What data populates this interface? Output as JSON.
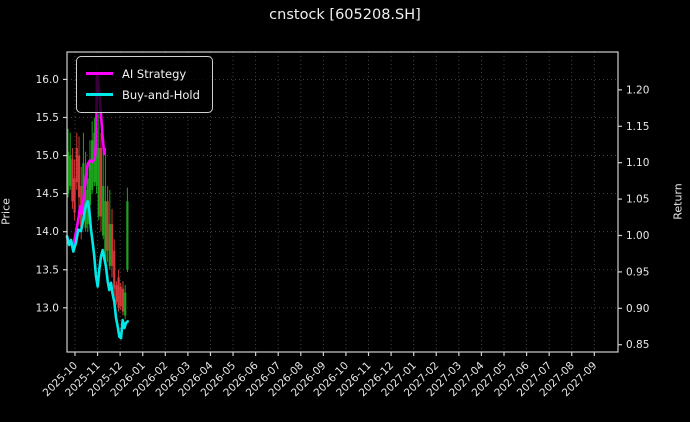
{
  "window": {
    "title": "cnstock [605208.SH]"
  },
  "chart_data": {
    "type": "candlestick+line",
    "title": "cnstock [605208.SH]",
    "grid": "dotted",
    "background": "#000000",
    "text_color": "#e8e8e8",
    "left_axis": {
      "label": "Price",
      "ticks": [
        "16.0",
        "15.5",
        "15.0",
        "14.5",
        "14.0",
        "13.5",
        "13.0"
      ],
      "ylim": [
        12.42,
        16.36
      ]
    },
    "right_axis": {
      "label": "Return",
      "ticks": [
        "1.20",
        "1.15",
        "1.10",
        "1.05",
        "1.00",
        "0.95",
        "0.90",
        "0.85"
      ],
      "ylim": [
        0.84,
        1.252
      ]
    },
    "x_axis": {
      "tick_labels": [
        "2025-10",
        "2025-11",
        "2025-12",
        "2026-01",
        "2026-02",
        "2026-03",
        "2026-04",
        "2026-05",
        "2026-06",
        "2026-07",
        "2026-08",
        "2026-09",
        "2026-10",
        "2026-11",
        "2026-12",
        "2027-01",
        "2027-02",
        "2027-03",
        "2027-04",
        "2027-05",
        "2027-06",
        "2027-07",
        "2027-08",
        "2027-09"
      ],
      "first_tick_frac": 0.0145,
      "tick_spacing_frac": 0.04098
    },
    "legend": {
      "position": "upper left",
      "entries": [
        {
          "label": "AI Strategy",
          "color": "#ff00ff"
        },
        {
          "label": "Buy-and-Hold",
          "color": "#00e8e8"
        }
      ]
    },
    "candle_colors": {
      "up": "#1fa41f",
      "down": "#d03a3a"
    },
    "candles": [
      {
        "x": 0.0018,
        "o": 14.5,
        "h": 15.35,
        "l": 14.45,
        "c": 15.05
      },
      {
        "x": 0.0058,
        "o": 14.6,
        "h": 15.3,
        "l": 14.55,
        "c": 15.0
      },
      {
        "x": 0.0098,
        "o": 14.95,
        "h": 15.1,
        "l": 14.3,
        "c": 14.4
      },
      {
        "x": 0.0138,
        "o": 14.7,
        "h": 14.95,
        "l": 14.15,
        "c": 14.25
      },
      {
        "x": 0.0178,
        "o": 15.1,
        "h": 15.3,
        "l": 14.55,
        "c": 14.65
      },
      {
        "x": 0.0218,
        "o": 15.0,
        "h": 15.25,
        "l": 14.3,
        "c": 14.45
      },
      {
        "x": 0.0258,
        "o": 14.6,
        "h": 14.85,
        "l": 13.9,
        "c": 14.05
      },
      {
        "x": 0.0298,
        "o": 14.25,
        "h": 15.3,
        "l": 14.2,
        "c": 14.9
      },
      {
        "x": 0.0338,
        "o": 14.05,
        "h": 15.05,
        "l": 14.0,
        "c": 14.55
      },
      {
        "x": 0.0377,
        "o": 14.1,
        "h": 14.9,
        "l": 14.0,
        "c": 14.7
      },
      {
        "x": 0.0417,
        "o": 14.35,
        "h": 15.2,
        "l": 14.3,
        "c": 14.95
      },
      {
        "x": 0.0457,
        "o": 14.55,
        "h": 15.45,
        "l": 14.5,
        "c": 15.2
      },
      {
        "x": 0.0497,
        "o": 14.65,
        "h": 15.5,
        "l": 14.6,
        "c": 15.3
      },
      {
        "x": 0.0537,
        "o": 14.6,
        "h": 15.55,
        "l": 14.5,
        "c": 15.35
      },
      {
        "x": 0.0577,
        "o": 14.2,
        "h": 15.55,
        "l": 14.15,
        "c": 15.1
      },
      {
        "x": 0.0617,
        "o": 15.1,
        "h": 15.3,
        "l": 14.0,
        "c": 14.2
      },
      {
        "x": 0.0657,
        "o": 13.95,
        "h": 15.05,
        "l": 13.9,
        "c": 14.6
      },
      {
        "x": 0.0697,
        "o": 13.6,
        "h": 15.1,
        "l": 13.5,
        "c": 14.4
      },
      {
        "x": 0.0737,
        "o": 14.4,
        "h": 14.6,
        "l": 13.6,
        "c": 13.75
      },
      {
        "x": 0.0777,
        "o": 13.55,
        "h": 14.55,
        "l": 13.5,
        "c": 14.1
      },
      {
        "x": 0.0817,
        "o": 14.1,
        "h": 14.3,
        "l": 13.4,
        "c": 13.55
      },
      {
        "x": 0.0857,
        "o": 13.75,
        "h": 13.9,
        "l": 13.15,
        "c": 13.25
      },
      {
        "x": 0.0896,
        "o": 13.3,
        "h": 13.35,
        "l": 13.04,
        "c": 13.08
      },
      {
        "x": 0.0936,
        "o": 13.4,
        "h": 13.5,
        "l": 12.95,
        "c": 13.0
      },
      {
        "x": 0.0976,
        "o": 13.28,
        "h": 13.33,
        "l": 12.97,
        "c": 13.02
      },
      {
        "x": 0.1016,
        "o": 13.25,
        "h": 13.35,
        "l": 12.9,
        "c": 12.95
      },
      {
        "x": 0.1056,
        "o": 12.9,
        "h": 13.3,
        "l": 12.85,
        "c": 13.2
      },
      {
        "x": 0.1096,
        "o": 13.5,
        "h": 14.58,
        "l": 13.47,
        "c": 14.4
      }
    ],
    "series": [
      {
        "name": "AI Strategy",
        "axis": "return",
        "color": "#ff00ff",
        "width": 2.6,
        "points": [
          [
            0.0,
            0.998
          ],
          [
            0.0036,
            0.988
          ],
          [
            0.0073,
            0.992
          ],
          [
            0.0109,
            0.985
          ],
          [
            0.0145,
            0.998
          ],
          [
            0.0181,
            1.012
          ],
          [
            0.0218,
            1.028
          ],
          [
            0.0236,
            1.04
          ],
          [
            0.0254,
            1.034
          ],
          [
            0.0272,
            1.03
          ],
          [
            0.029,
            1.044
          ],
          [
            0.0308,
            1.056
          ],
          [
            0.0327,
            1.068
          ],
          [
            0.0345,
            1.082
          ],
          [
            0.0363,
            1.092
          ],
          [
            0.0381,
            1.099
          ],
          [
            0.0417,
            1.103
          ],
          [
            0.0454,
            1.101
          ],
          [
            0.049,
            1.104
          ],
          [
            0.0508,
            1.108
          ],
          [
            0.0526,
            1.128
          ],
          [
            0.0537,
            1.18
          ],
          [
            0.0544,
            1.223
          ],
          [
            0.0555,
            1.219
          ],
          [
            0.057,
            1.208
          ],
          [
            0.059,
            1.192
          ],
          [
            0.0608,
            1.175
          ],
          [
            0.0626,
            1.156
          ],
          [
            0.0644,
            1.138
          ],
          [
            0.0662,
            1.122
          ],
          [
            0.0677,
            1.112
          ]
        ]
      },
      {
        "name": "Buy-and-Hold",
        "axis": "return",
        "color": "#00e8e8",
        "width": 2.6,
        "points": [
          [
            0.0,
            0.999
          ],
          [
            0.0041,
            0.987
          ],
          [
            0.0073,
            0.994
          ],
          [
            0.0114,
            0.978
          ],
          [
            0.0163,
            0.99
          ],
          [
            0.0205,
            1.008
          ],
          [
            0.0254,
            1.006
          ],
          [
            0.0296,
            1.022
          ],
          [
            0.0345,
            1.042
          ],
          [
            0.0376,
            1.047
          ],
          [
            0.0405,
            1.035
          ],
          [
            0.0436,
            1.008
          ],
          [
            0.0466,
            0.99
          ],
          [
            0.0495,
            0.971
          ],
          [
            0.0526,
            0.944
          ],
          [
            0.0557,
            0.93
          ],
          [
            0.0586,
            0.953
          ],
          [
            0.0617,
            0.971
          ],
          [
            0.0648,
            0.98
          ],
          [
            0.0677,
            0.969
          ],
          [
            0.0708,
            0.957
          ],
          [
            0.0739,
            0.937
          ],
          [
            0.0768,
            0.925
          ],
          [
            0.0798,
            0.935
          ],
          [
            0.0829,
            0.919
          ],
          [
            0.0859,
            0.909
          ],
          [
            0.0889,
            0.887
          ],
          [
            0.092,
            0.875
          ],
          [
            0.0949,
            0.861
          ],
          [
            0.098,
            0.859
          ],
          [
            0.1011,
            0.884
          ],
          [
            0.1041,
            0.873
          ],
          [
            0.1071,
            0.88
          ],
          [
            0.1102,
            0.882
          ]
        ]
      }
    ]
  }
}
